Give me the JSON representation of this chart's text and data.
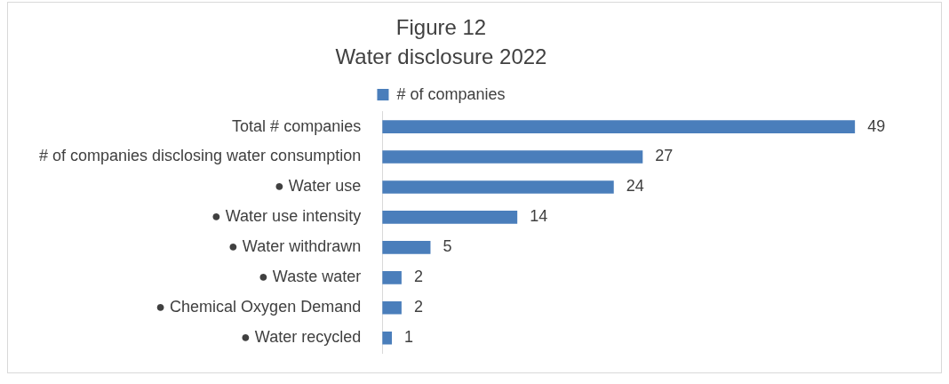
{
  "chart_data": {
    "type": "bar",
    "orientation": "horizontal",
    "title": "Figure 12",
    "subtitle": "Water disclosure 2022",
    "categories": [
      "Total # companies",
      "# of companies disclosing water consumption",
      "● Water use",
      "● Water use intensity",
      "● Water withdrawn",
      "● Waste water",
      "● Chemical Oxygen Demand",
      "● Water recycled"
    ],
    "series": [
      {
        "name": "# of companies",
        "color": "#4a7ebb",
        "values": [
          49,
          27,
          24,
          14,
          5,
          2,
          2,
          1
        ]
      }
    ],
    "data_labels": true,
    "legend": "top",
    "grid": false,
    "tick_labels": "y"
  }
}
